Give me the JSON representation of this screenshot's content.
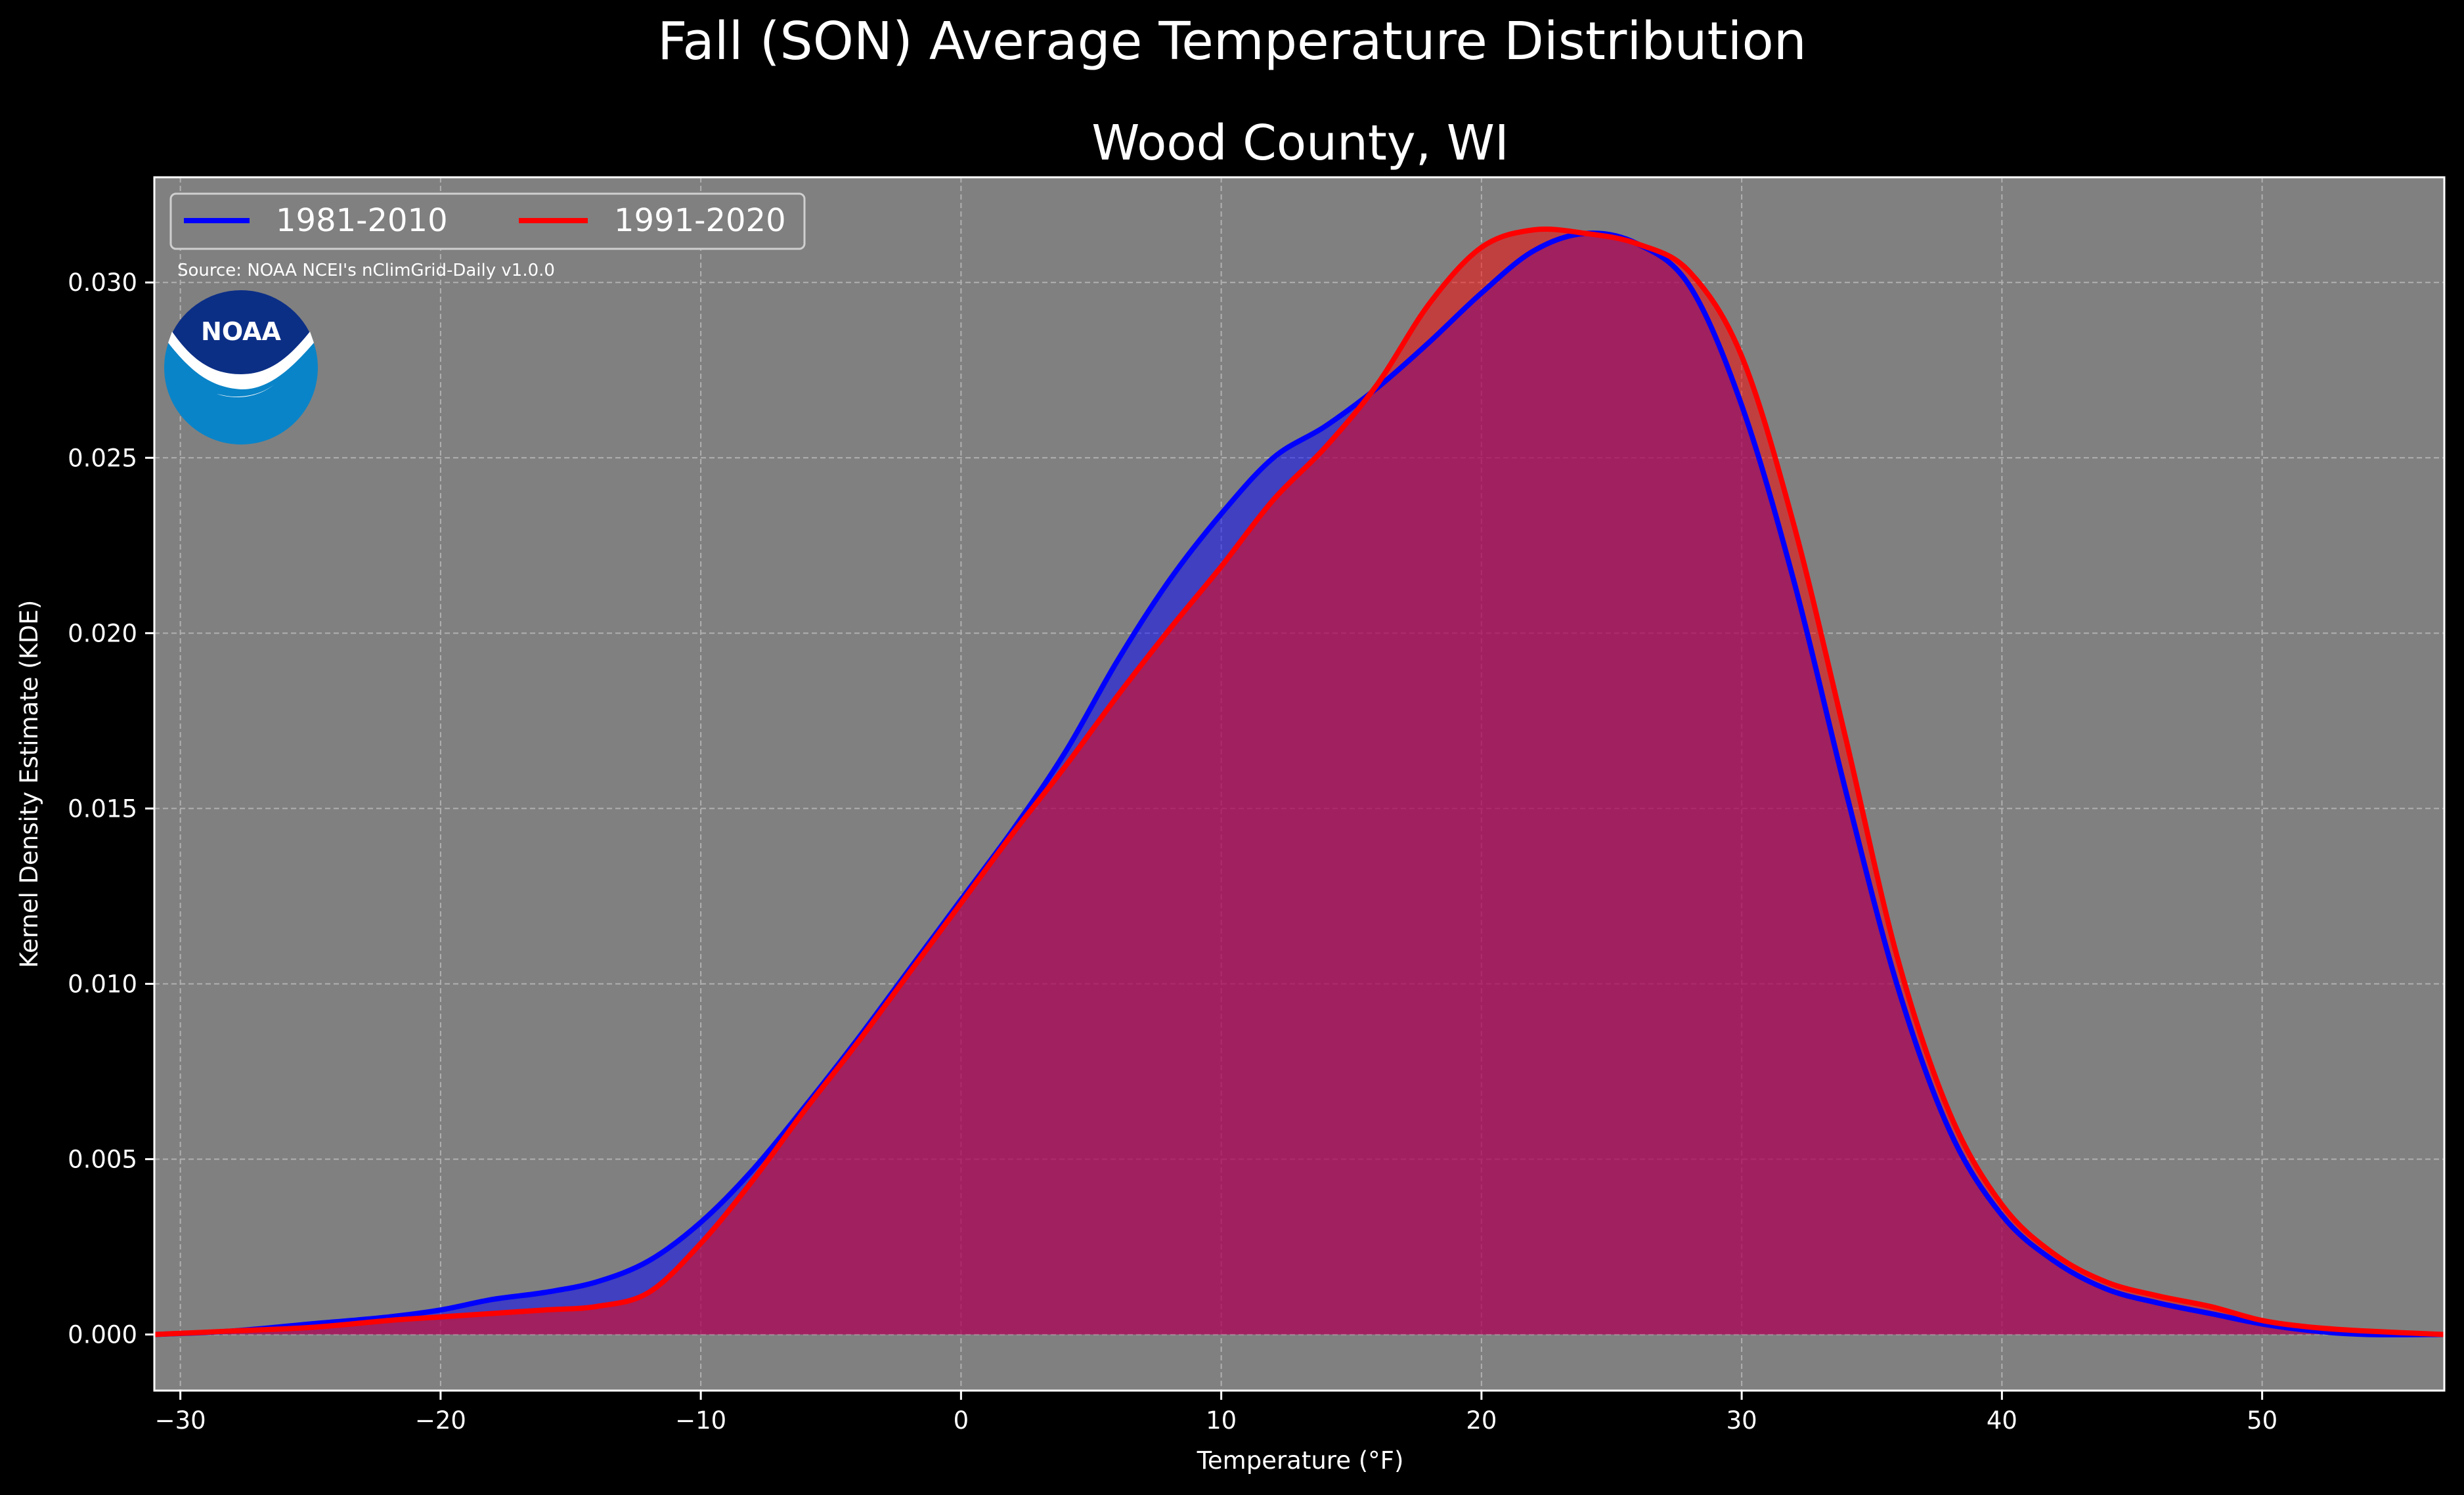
{
  "suptitle": "Fall (SON) Average Temperature Distribution",
  "source": "Source: NOAA NCEI's nClimGrid-Daily v1.0.0",
  "logo_text": "NOAA",
  "chart_data": {
    "type": "area",
    "title": "Wood County, WI",
    "xlabel": "Temperature (°F)",
    "ylabel": "Kernel Density Estimate (KDE)",
    "xlim": [
      -31,
      57
    ],
    "ylim": [
      -0.0016,
      0.033
    ],
    "xticks": [
      -30,
      -20,
      -10,
      0,
      10,
      20,
      30,
      40,
      50
    ],
    "xtick_labels": [
      "−30",
      "−20",
      "−10",
      "0",
      "10",
      "20",
      "30",
      "40",
      "50"
    ],
    "yticks": [
      0.0,
      0.005,
      0.01,
      0.015,
      0.02,
      0.025,
      0.03
    ],
    "ytick_labels": [
      "0.000",
      "0.005",
      "0.010",
      "0.015",
      "0.020",
      "0.025",
      "0.030"
    ],
    "grid": true,
    "legend_position": "top-left",
    "background_color": "#808080",
    "series": [
      {
        "name": "1981-2010",
        "color": "#0000ff",
        "fill": "#0000ff",
        "x": [
          -31,
          -28,
          -25,
          -22,
          -20,
          -18,
          -16,
          -14,
          -12,
          -10,
          -8,
          -6,
          -4,
          -2,
          0,
          2,
          4,
          6,
          8,
          10,
          12,
          14,
          16,
          18,
          20,
          22,
          24,
          26,
          28,
          30,
          32,
          34,
          36,
          38,
          40,
          42,
          44,
          46,
          48,
          50,
          52,
          54,
          57
        ],
        "y": [
          0.0,
          0.0001,
          0.0003,
          0.0005,
          0.0007,
          0.001,
          0.0012,
          0.0015,
          0.0021,
          0.0032,
          0.0047,
          0.0065,
          0.0084,
          0.0104,
          0.0124,
          0.0144,
          0.0166,
          0.0192,
          0.0215,
          0.0234,
          0.025,
          0.0259,
          0.027,
          0.0283,
          0.0297,
          0.0309,
          0.0314,
          0.0311,
          0.0299,
          0.0265,
          0.0215,
          0.0155,
          0.0099,
          0.0058,
          0.0034,
          0.0021,
          0.0013,
          0.0009,
          0.0006,
          0.0003,
          0.0001,
          0.0,
          0.0
        ]
      },
      {
        "name": "1991-2020",
        "color": "#ff0000",
        "fill": "#ff0000",
        "x": [
          -31,
          -28,
          -25,
          -22,
          -20,
          -18,
          -16,
          -14,
          -12,
          -10,
          -8,
          -6,
          -4,
          -2,
          0,
          2,
          4,
          6,
          8,
          10,
          12,
          14,
          16,
          18,
          20,
          22,
          24,
          26,
          28,
          30,
          32,
          34,
          36,
          38,
          40,
          42,
          44,
          46,
          48,
          50,
          52,
          54,
          57
        ],
        "y": [
          0.0,
          0.0001,
          0.0002,
          0.0004,
          0.0005,
          0.0006,
          0.0007,
          0.0008,
          0.0012,
          0.0026,
          0.0044,
          0.0064,
          0.0083,
          0.0103,
          0.0123,
          0.0143,
          0.0162,
          0.0182,
          0.0201,
          0.0219,
          0.0238,
          0.0253,
          0.0271,
          0.0294,
          0.031,
          0.0315,
          0.0314,
          0.0311,
          0.0303,
          0.0279,
          0.0231,
          0.017,
          0.0107,
          0.0063,
          0.0037,
          0.0023,
          0.0015,
          0.0011,
          0.0008,
          0.0004,
          0.0002,
          0.0001,
          0.0
        ]
      }
    ]
  }
}
